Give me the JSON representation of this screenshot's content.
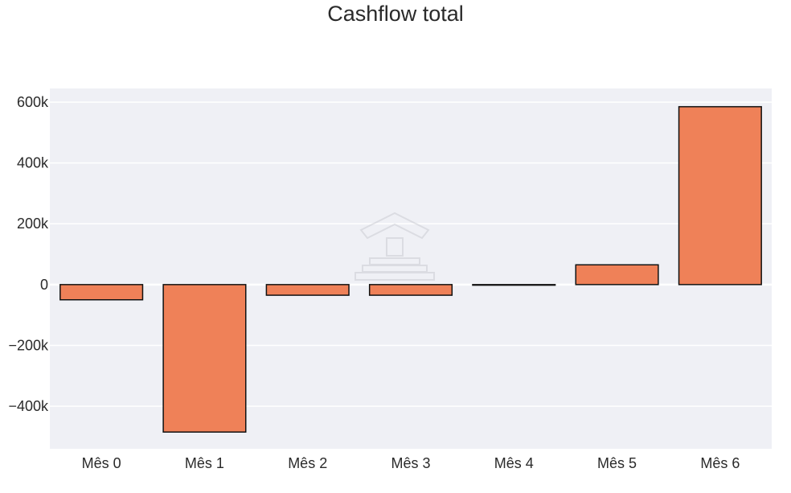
{
  "chart_data": {
    "type": "bar",
    "title": "Cashflow total",
    "xlabel": "",
    "ylabel": "",
    "categories": [
      "Mês 0",
      "Mês 1",
      "Mês 2",
      "Mês 3",
      "Mês 4",
      "Mês 5",
      "Mês 6"
    ],
    "values": [
      -50000,
      -485000,
      -35000,
      -35000,
      -2000,
      65000,
      585000
    ],
    "ylim": [
      -540000,
      645000
    ],
    "yticks": [
      -400000,
      -200000,
      0,
      200000,
      400000,
      600000
    ],
    "ytick_labels": [
      "−400k",
      "−200k",
      "0",
      "200k",
      "400k",
      "600k"
    ],
    "grid": true,
    "legend": "none",
    "colors": {
      "bar_fill": "#ef8158",
      "bar_stroke": "#111111",
      "plot_background": "#eff0f5",
      "grid": "#ffffff",
      "text": "#2a2a2a"
    }
  }
}
